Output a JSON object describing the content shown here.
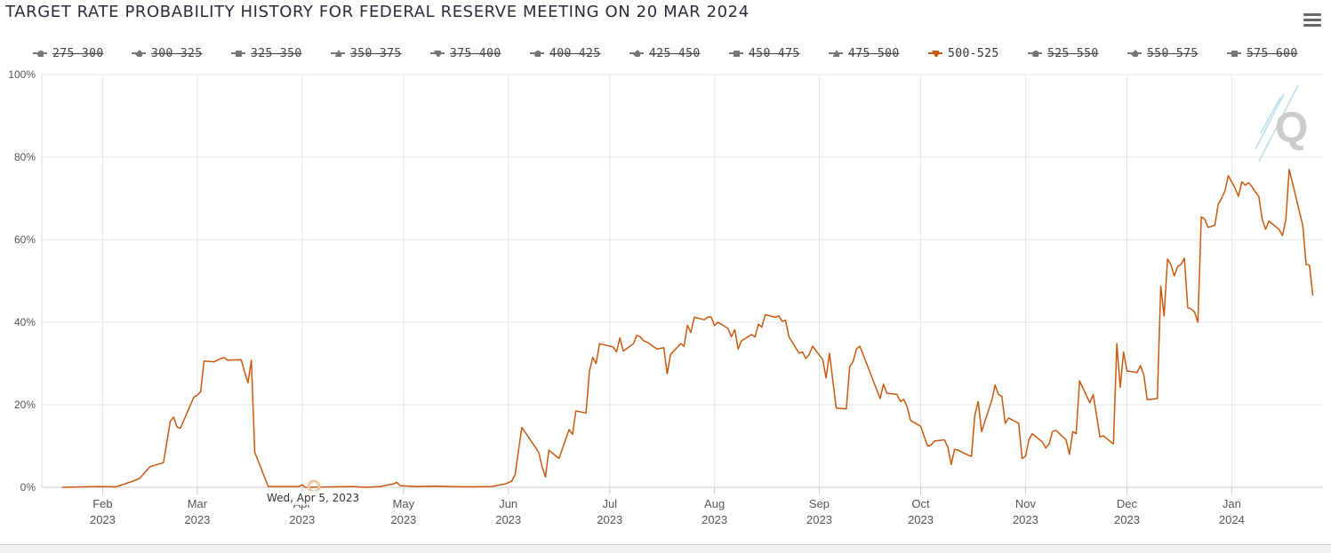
{
  "title": "TARGET RATE PROBABILITY HISTORY FOR FEDERAL RESERVE MEETING ON 20 MAR 2024",
  "menu_icon": "hamburger-menu-icon",
  "tooltip": "Wed, Apr 5, 2023",
  "legend": [
    {
      "label": "275-300",
      "marker": "circle",
      "active": false
    },
    {
      "label": "300-325",
      "marker": "diamond",
      "active": false
    },
    {
      "label": "325-350",
      "marker": "square",
      "active": false
    },
    {
      "label": "350-375",
      "marker": "triangle",
      "active": false
    },
    {
      "label": "375-400",
      "marker": "triangle-down",
      "active": false
    },
    {
      "label": "400-425",
      "marker": "circle",
      "active": false
    },
    {
      "label": "425-450",
      "marker": "diamond",
      "active": false
    },
    {
      "label": "450-475",
      "marker": "square",
      "active": false
    },
    {
      "label": "475-500",
      "marker": "triangle",
      "active": false
    },
    {
      "label": "500-525",
      "marker": "triangle-down",
      "active": true,
      "color": "#c8590e"
    },
    {
      "label": "525-550",
      "marker": "circle",
      "active": false
    },
    {
      "label": "550-575",
      "marker": "diamond",
      "active": false
    },
    {
      "label": "575-600",
      "marker": "square",
      "active": false
    }
  ],
  "chart_data": {
    "type": "line",
    "title": "TARGET RATE PROBABILITY HISTORY FOR FEDERAL RESERVE MEETING ON 20 MAR 2024",
    "xlabel": "",
    "ylabel": "",
    "ylim": [
      0,
      100
    ],
    "yticks": [
      "0%",
      "20%",
      "40%",
      "60%",
      "80%",
      "100%"
    ],
    "xticks": [
      {
        "month": "Feb",
        "year": "2023",
        "date": "2023-02-01"
      },
      {
        "month": "Mar",
        "year": "2023",
        "date": "2023-03-01"
      },
      {
        "month": "Apr",
        "year": "2023",
        "date": "2023-04-01"
      },
      {
        "month": "May",
        "year": "2023",
        "date": "2023-05-01"
      },
      {
        "month": "Jun",
        "year": "2023",
        "date": "2023-06-01"
      },
      {
        "month": "Jul",
        "year": "2023",
        "date": "2023-07-01"
      },
      {
        "month": "Aug",
        "year": "2023",
        "date": "2023-08-01"
      },
      {
        "month": "Sep",
        "year": "2023",
        "date": "2023-09-01"
      },
      {
        "month": "Oct",
        "year": "2023",
        "date": "2023-10-01"
      },
      {
        "month": "Nov",
        "year": "2023",
        "date": "2023-11-01"
      },
      {
        "month": "Dec",
        "year": "2023",
        "date": "2023-12-01"
      },
      {
        "month": "Jan",
        "year": "2024",
        "date": "2024-01-01"
      }
    ],
    "grid": true,
    "legend_position": "top",
    "series": [
      {
        "name": "500-525",
        "color": "#c8590e",
        "points": [
          [
            "2023-01-20",
            0
          ],
          [
            "2023-01-26",
            0.1
          ],
          [
            "2023-01-31",
            0.2
          ],
          [
            "2023-02-05",
            0.1
          ],
          [
            "2023-02-10",
            1.5
          ],
          [
            "2023-02-12",
            2.2
          ],
          [
            "2023-02-15",
            5.0
          ],
          [
            "2023-02-19",
            6.0
          ],
          [
            "2023-02-21",
            16.0
          ],
          [
            "2023-02-22",
            17.0
          ],
          [
            "2023-02-23",
            14.6
          ],
          [
            "2023-02-24",
            14.3
          ],
          [
            "2023-02-28",
            21.9
          ],
          [
            "2023-03-01",
            22.3
          ],
          [
            "2023-03-02",
            23.2
          ],
          [
            "2023-03-03",
            30.6
          ],
          [
            "2023-03-06",
            30.4
          ],
          [
            "2023-03-08",
            31.2
          ],
          [
            "2023-03-09",
            31.4
          ],
          [
            "2023-03-10",
            30.8
          ],
          [
            "2023-03-14",
            30.9
          ],
          [
            "2023-03-15",
            28.0
          ],
          [
            "2023-03-16",
            25.3
          ],
          [
            "2023-03-17",
            30.8
          ],
          [
            "2023-03-18",
            8.5
          ],
          [
            "2023-03-22",
            0.2
          ],
          [
            "2023-03-27",
            0.2
          ],
          [
            "2023-03-31",
            0.2
          ],
          [
            "2023-04-01",
            0.6
          ],
          [
            "2023-04-02",
            0
          ],
          [
            "2023-04-10",
            0.1
          ],
          [
            "2023-04-16",
            0.2
          ],
          [
            "2023-04-20",
            0
          ],
          [
            "2023-04-24",
            0.2
          ],
          [
            "2023-04-28",
            0.8
          ],
          [
            "2023-04-29",
            1.2
          ],
          [
            "2023-04-30",
            0.4
          ],
          [
            "2023-05-05",
            0.2
          ],
          [
            "2023-05-10",
            0.3
          ],
          [
            "2023-05-20",
            0.1
          ],
          [
            "2023-05-27",
            0.2
          ],
          [
            "2023-05-31",
            0.8
          ],
          [
            "2023-06-02",
            1.5
          ],
          [
            "2023-06-03",
            3.0
          ],
          [
            "2023-06-05",
            14.5
          ],
          [
            "2023-06-10",
            8.5
          ],
          [
            "2023-06-11",
            5.0
          ],
          [
            "2023-06-12",
            2.5
          ],
          [
            "2023-06-13",
            9.0
          ],
          [
            "2023-06-16",
            7.0
          ],
          [
            "2023-06-19",
            14.0
          ],
          [
            "2023-06-20",
            12.8
          ],
          [
            "2023-06-21",
            18.5
          ],
          [
            "2023-06-24",
            18.0
          ],
          [
            "2023-06-25",
            28.0
          ],
          [
            "2023-06-26",
            31.5
          ],
          [
            "2023-06-27",
            30.0
          ],
          [
            "2023-06-28",
            34.8
          ],
          [
            "2023-07-02",
            34.0
          ],
          [
            "2023-07-03",
            32.8
          ],
          [
            "2023-07-04",
            36.2
          ],
          [
            "2023-07-05",
            33.0
          ],
          [
            "2023-07-08",
            34.8
          ],
          [
            "2023-07-09",
            36.8
          ],
          [
            "2023-07-10",
            36.5
          ],
          [
            "2023-07-11",
            35.5
          ],
          [
            "2023-07-12",
            35.2
          ],
          [
            "2023-07-15",
            33.5
          ],
          [
            "2023-07-17",
            33.8
          ],
          [
            "2023-07-18",
            27.5
          ],
          [
            "2023-07-19",
            32.2
          ],
          [
            "2023-07-22",
            34.8
          ],
          [
            "2023-07-23",
            34.2
          ],
          [
            "2023-07-24",
            39.3
          ],
          [
            "2023-07-25",
            37.5
          ],
          [
            "2023-07-26",
            41.2
          ],
          [
            "2023-07-29",
            40.6
          ],
          [
            "2023-07-30",
            41.2
          ],
          [
            "2023-07-31",
            41.3
          ],
          [
            "2023-08-01",
            39.2
          ],
          [
            "2023-08-02",
            40.0
          ],
          [
            "2023-08-05",
            38.5
          ],
          [
            "2023-08-06",
            36.5
          ],
          [
            "2023-08-07",
            38.2
          ],
          [
            "2023-08-08",
            33.5
          ],
          [
            "2023-08-09",
            35.5
          ],
          [
            "2023-08-12",
            37.0
          ],
          [
            "2023-08-13",
            36.4
          ],
          [
            "2023-08-14",
            39.5
          ],
          [
            "2023-08-15",
            38.8
          ],
          [
            "2023-08-16",
            41.8
          ],
          [
            "2023-08-19",
            41.2
          ],
          [
            "2023-08-20",
            41.5
          ],
          [
            "2023-08-21",
            40.2
          ],
          [
            "2023-08-22",
            40.5
          ],
          [
            "2023-08-23",
            36.5
          ],
          [
            "2023-08-26",
            32.5
          ],
          [
            "2023-08-27",
            32.8
          ],
          [
            "2023-08-28",
            31.2
          ],
          [
            "2023-08-29",
            32.2
          ],
          [
            "2023-08-30",
            34.2
          ],
          [
            "2023-09-02",
            31.0
          ],
          [
            "2023-09-03",
            26.5
          ],
          [
            "2023-09-04",
            32.5
          ],
          [
            "2023-09-06",
            19.2
          ],
          [
            "2023-09-09",
            19.0
          ],
          [
            "2023-09-10",
            29.2
          ],
          [
            "2023-09-11",
            30.5
          ],
          [
            "2023-09-12",
            33.5
          ],
          [
            "2023-09-13",
            34.2
          ],
          [
            "2023-09-19",
            21.5
          ],
          [
            "2023-09-20",
            25.0
          ],
          [
            "2023-09-21",
            22.8
          ],
          [
            "2023-09-24",
            22.5
          ],
          [
            "2023-09-25",
            20.8
          ],
          [
            "2023-09-26",
            21.3
          ],
          [
            "2023-09-27",
            19.5
          ],
          [
            "2023-09-28",
            16.2
          ],
          [
            "2023-10-01",
            14.8
          ],
          [
            "2023-10-03",
            10.0
          ],
          [
            "2023-10-04",
            10.2
          ],
          [
            "2023-10-05",
            11.2
          ],
          [
            "2023-10-08",
            11.5
          ],
          [
            "2023-10-09",
            9.8
          ],
          [
            "2023-10-10",
            5.5
          ],
          [
            "2023-10-11",
            9.2
          ],
          [
            "2023-10-12",
            9.0
          ],
          [
            "2023-10-15",
            7.8
          ],
          [
            "2023-10-16",
            7.5
          ],
          [
            "2023-10-17",
            17.5
          ],
          [
            "2023-10-18",
            20.8
          ],
          [
            "2023-10-19",
            13.5
          ],
          [
            "2023-10-22",
            21.0
          ],
          [
            "2023-10-23",
            24.8
          ],
          [
            "2023-10-24",
            22.5
          ],
          [
            "2023-10-25",
            22.0
          ],
          [
            "2023-10-26",
            15.5
          ],
          [
            "2023-10-27",
            16.8
          ],
          [
            "2023-10-30",
            15.5
          ],
          [
            "2023-10-31",
            7.0
          ],
          [
            "2023-11-01",
            7.5
          ],
          [
            "2023-11-02",
            11.5
          ],
          [
            "2023-11-03",
            13.0
          ],
          [
            "2023-11-06",
            11.0
          ],
          [
            "2023-11-07",
            9.5
          ],
          [
            "2023-11-08",
            10.5
          ],
          [
            "2023-11-09",
            13.5
          ],
          [
            "2023-11-10",
            13.8
          ],
          [
            "2023-11-13",
            11.5
          ],
          [
            "2023-11-14",
            8.0
          ],
          [
            "2023-11-15",
            13.5
          ],
          [
            "2023-11-16",
            13.0
          ],
          [
            "2023-11-17",
            25.8
          ],
          [
            "2023-11-20",
            20.5
          ],
          [
            "2023-11-21",
            22.5
          ],
          [
            "2023-11-22",
            17.5
          ],
          [
            "2023-11-23",
            12.2
          ],
          [
            "2023-11-24",
            12.5
          ],
          [
            "2023-11-27",
            10.5
          ],
          [
            "2023-11-28",
            34.8
          ],
          [
            "2023-11-29",
            24.2
          ],
          [
            "2023-11-30",
            32.8
          ],
          [
            "2023-12-01",
            28.2
          ],
          [
            "2023-12-04",
            27.8
          ],
          [
            "2023-12-05",
            29.5
          ],
          [
            "2023-12-06",
            27.2
          ],
          [
            "2023-12-07",
            21.2
          ],
          [
            "2023-12-10",
            21.5
          ],
          [
            "2023-12-11",
            48.8
          ],
          [
            "2023-12-12",
            41.5
          ],
          [
            "2023-12-13",
            55.3
          ],
          [
            "2023-12-14",
            54.0
          ],
          [
            "2023-12-15",
            51.2
          ],
          [
            "2023-12-16",
            53.5
          ],
          [
            "2023-12-17",
            54.0
          ],
          [
            "2023-12-18",
            55.5
          ],
          [
            "2023-12-19",
            43.5
          ],
          [
            "2023-12-20",
            43.2
          ],
          [
            "2023-12-21",
            42.5
          ],
          [
            "2023-12-22",
            40.0
          ],
          [
            "2023-12-23",
            65.5
          ],
          [
            "2023-12-24",
            65.0
          ],
          [
            "2023-12-25",
            63.0
          ],
          [
            "2023-12-26",
            63.2
          ],
          [
            "2023-12-27",
            63.5
          ],
          [
            "2023-12-28",
            68.5
          ],
          [
            "2023-12-29",
            70.0
          ],
          [
            "2023-12-30",
            71.8
          ],
          [
            "2023-12-31",
            75.5
          ],
          [
            "2024-01-02",
            72.5
          ],
          [
            "2024-01-03",
            70.5
          ],
          [
            "2024-01-04",
            74.0
          ],
          [
            "2024-01-05",
            73.2
          ],
          [
            "2024-01-06",
            73.8
          ],
          [
            "2024-01-07",
            72.8
          ],
          [
            "2024-01-08",
            71.5
          ],
          [
            "2024-01-09",
            70.5
          ],
          [
            "2024-01-10",
            65.0
          ],
          [
            "2024-01-11",
            62.5
          ],
          [
            "2024-01-12",
            64.5
          ],
          [
            "2024-01-15",
            62.5
          ],
          [
            "2024-01-16",
            61.0
          ],
          [
            "2024-01-17",
            64.8
          ],
          [
            "2024-01-18",
            77.0
          ],
          [
            "2024-01-22",
            63.5
          ],
          [
            "2024-01-23",
            54.0
          ],
          [
            "2024-01-24",
            53.8
          ],
          [
            "2024-01-25",
            46.5
          ]
        ]
      }
    ]
  }
}
